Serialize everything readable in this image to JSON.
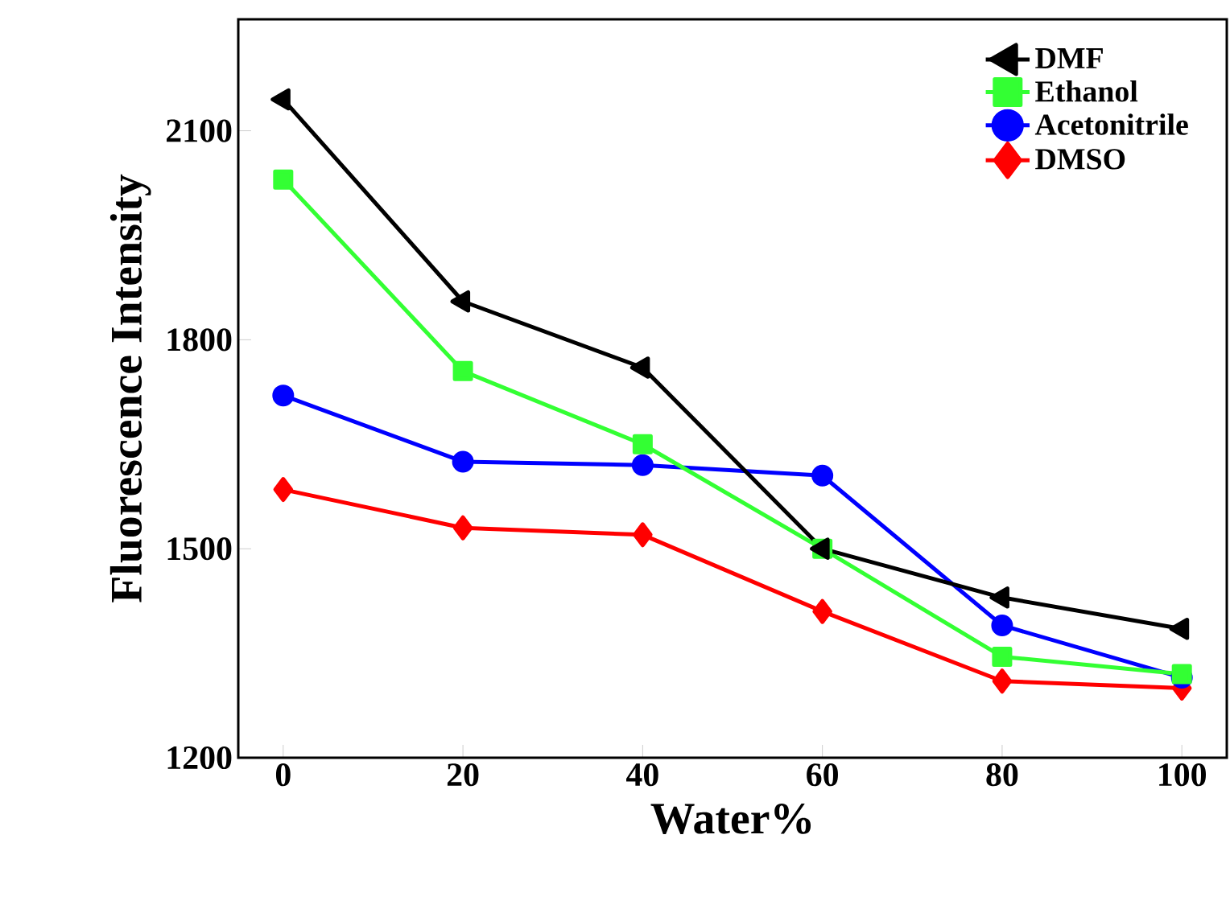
{
  "chart_data": {
    "type": "line",
    "xlabel": "Water%",
    "ylabel": "Fluorescence Intensity",
    "x": [
      0,
      20,
      40,
      60,
      80,
      100
    ],
    "series": [
      {
        "name": "DMF",
        "color": "#000000",
        "marker": "triangle-left",
        "values": [
          2145,
          1855,
          1760,
          1500,
          1430,
          1385
        ]
      },
      {
        "name": "Ethanol",
        "color": "#33ff33",
        "marker": "square",
        "values": [
          2030,
          1755,
          1650,
          1500,
          1345,
          1320
        ]
      },
      {
        "name": "Acetonitrile",
        "color": "#0000ff",
        "marker": "circle",
        "values": [
          1720,
          1625,
          1620,
          1605,
          1390,
          1315
        ]
      },
      {
        "name": "DMSO",
        "color": "#ff0000",
        "marker": "diamond",
        "values": [
          1585,
          1530,
          1520,
          1410,
          1310,
          1300
        ]
      }
    ],
    "xlim": [
      -5,
      105
    ],
    "ylim": [
      1200,
      2260
    ],
    "xticks": [
      0,
      20,
      40,
      60,
      80,
      100
    ],
    "yticks": [
      1200,
      1500,
      1800,
      2100
    ],
    "legend": "top right"
  }
}
